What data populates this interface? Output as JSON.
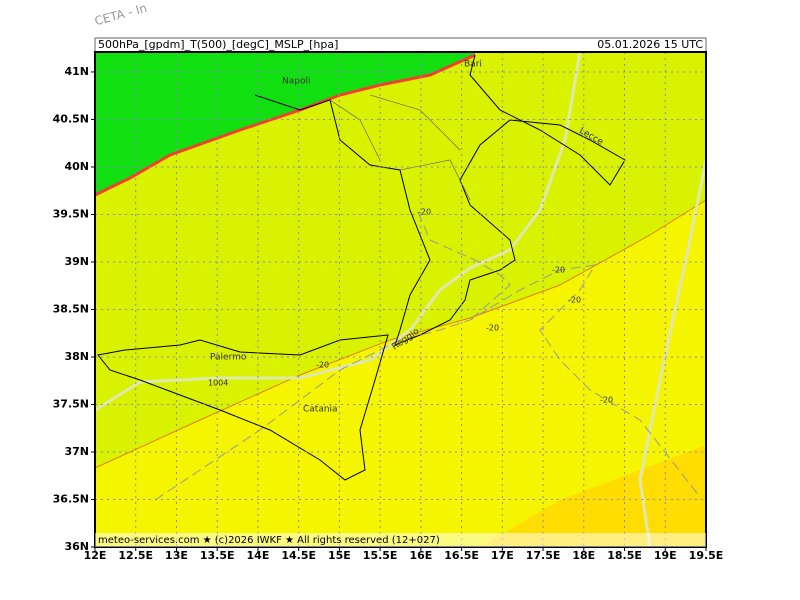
{
  "corner_text": "CETA - In",
  "header": {
    "left": "500hPa_[gpdm]_T(500)_[degC]_MSLP_[hpa]",
    "right": "05.01.2026 15 UTC"
  },
  "footer": "meteo-services.com ★ (c)2026 IWKF ★ All rights reserved (12+027)",
  "map": {
    "lonlim": [
      12,
      19.5
    ],
    "latlim": [
      36,
      41.21
    ],
    "lonticks": [
      {
        "value": 12,
        "label": "12E"
      },
      {
        "value": 12.5,
        "label": "12.5E"
      },
      {
        "value": 13,
        "label": "13E"
      },
      {
        "value": 13.5,
        "label": "13.5E"
      },
      {
        "value": 14,
        "label": "14E"
      },
      {
        "value": 14.5,
        "label": "14.5E"
      },
      {
        "value": 15,
        "label": "15E"
      },
      {
        "value": 15.5,
        "label": "15.5E"
      },
      {
        "value": 16,
        "label": "16E"
      },
      {
        "value": 16.5,
        "label": "16.5E"
      },
      {
        "value": 17,
        "label": "17E"
      },
      {
        "value": 17.5,
        "label": "17.5E"
      },
      {
        "value": 18,
        "label": "18E"
      },
      {
        "value": 18.5,
        "label": "18.5E"
      },
      {
        "value": 19,
        "label": "19E"
      },
      {
        "value": 19.5,
        "label": "19.5E"
      }
    ],
    "latticks": [
      {
        "value": 41,
        "label": "41N"
      },
      {
        "value": 40.5,
        "label": "40.5N"
      },
      {
        "value": 40,
        "label": "40N"
      },
      {
        "value": 39.5,
        "label": "39.5N"
      },
      {
        "value": 39,
        "label": "39N"
      },
      {
        "value": 38.5,
        "label": "38.5N"
      },
      {
        "value": 38,
        "label": "38N"
      },
      {
        "value": 37.5,
        "label": "37.5N"
      },
      {
        "value": 37,
        "label": "37N"
      },
      {
        "value": 36.5,
        "label": "36.5N"
      },
      {
        "value": 36,
        "label": "36N"
      }
    ],
    "cities": [
      "Napoli",
      "Bari",
      "Lecce",
      "Palermo",
      "Reggio",
      "Catania"
    ],
    "contour_labels": [
      "-20",
      "-20",
      "-20",
      "-20",
      "-20",
      "-20",
      "1004"
    ]
  }
}
